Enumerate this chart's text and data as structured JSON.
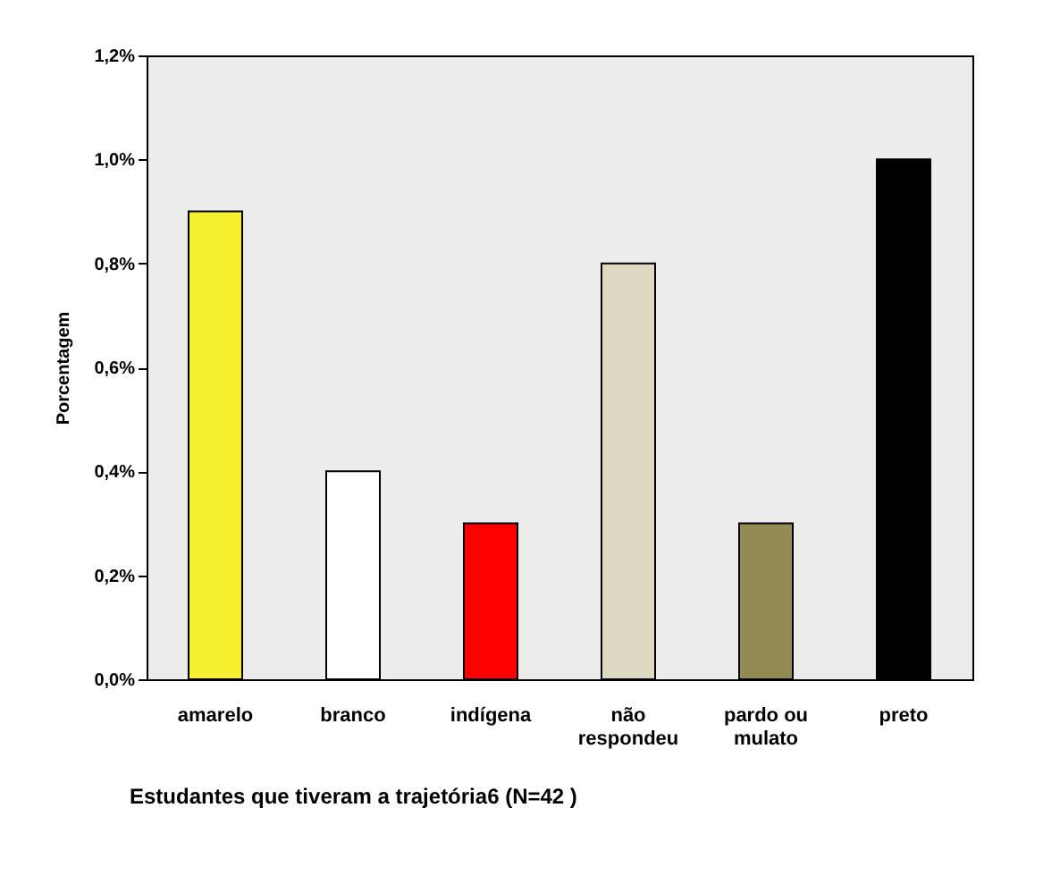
{
  "chart_data": {
    "type": "bar",
    "xlabel": "Estudantes que tiveram a trajetória6    (N=42  )",
    "ylabel": "Porcentagem",
    "categories": [
      "amarelo",
      "branco",
      "indígena",
      "não respondeu",
      "pardo ou mulato",
      "preto"
    ],
    "values": [
      0.9,
      0.4,
      0.3,
      0.8,
      0.3,
      1.0
    ],
    "colors": [
      "#f5ef2f",
      "#ffffff",
      "#ff0000",
      "#ddd9c3",
      "#948a54",
      "#000000"
    ],
    "ylim": [
      0,
      1.2
    ],
    "yticks": [
      {
        "value": 0,
        "label": "0,0%"
      },
      {
        "value": 0.2,
        "label": "0,2%"
      },
      {
        "value": 0.4,
        "label": "0,4%"
      },
      {
        "value": 0.6,
        "label": "0,6%"
      },
      {
        "value": 0.8,
        "label": "0,8%"
      },
      {
        "value": 1.0,
        "label": "1,0%"
      },
      {
        "value": 1.2,
        "label": "1,2%"
      }
    ],
    "grid": false
  }
}
